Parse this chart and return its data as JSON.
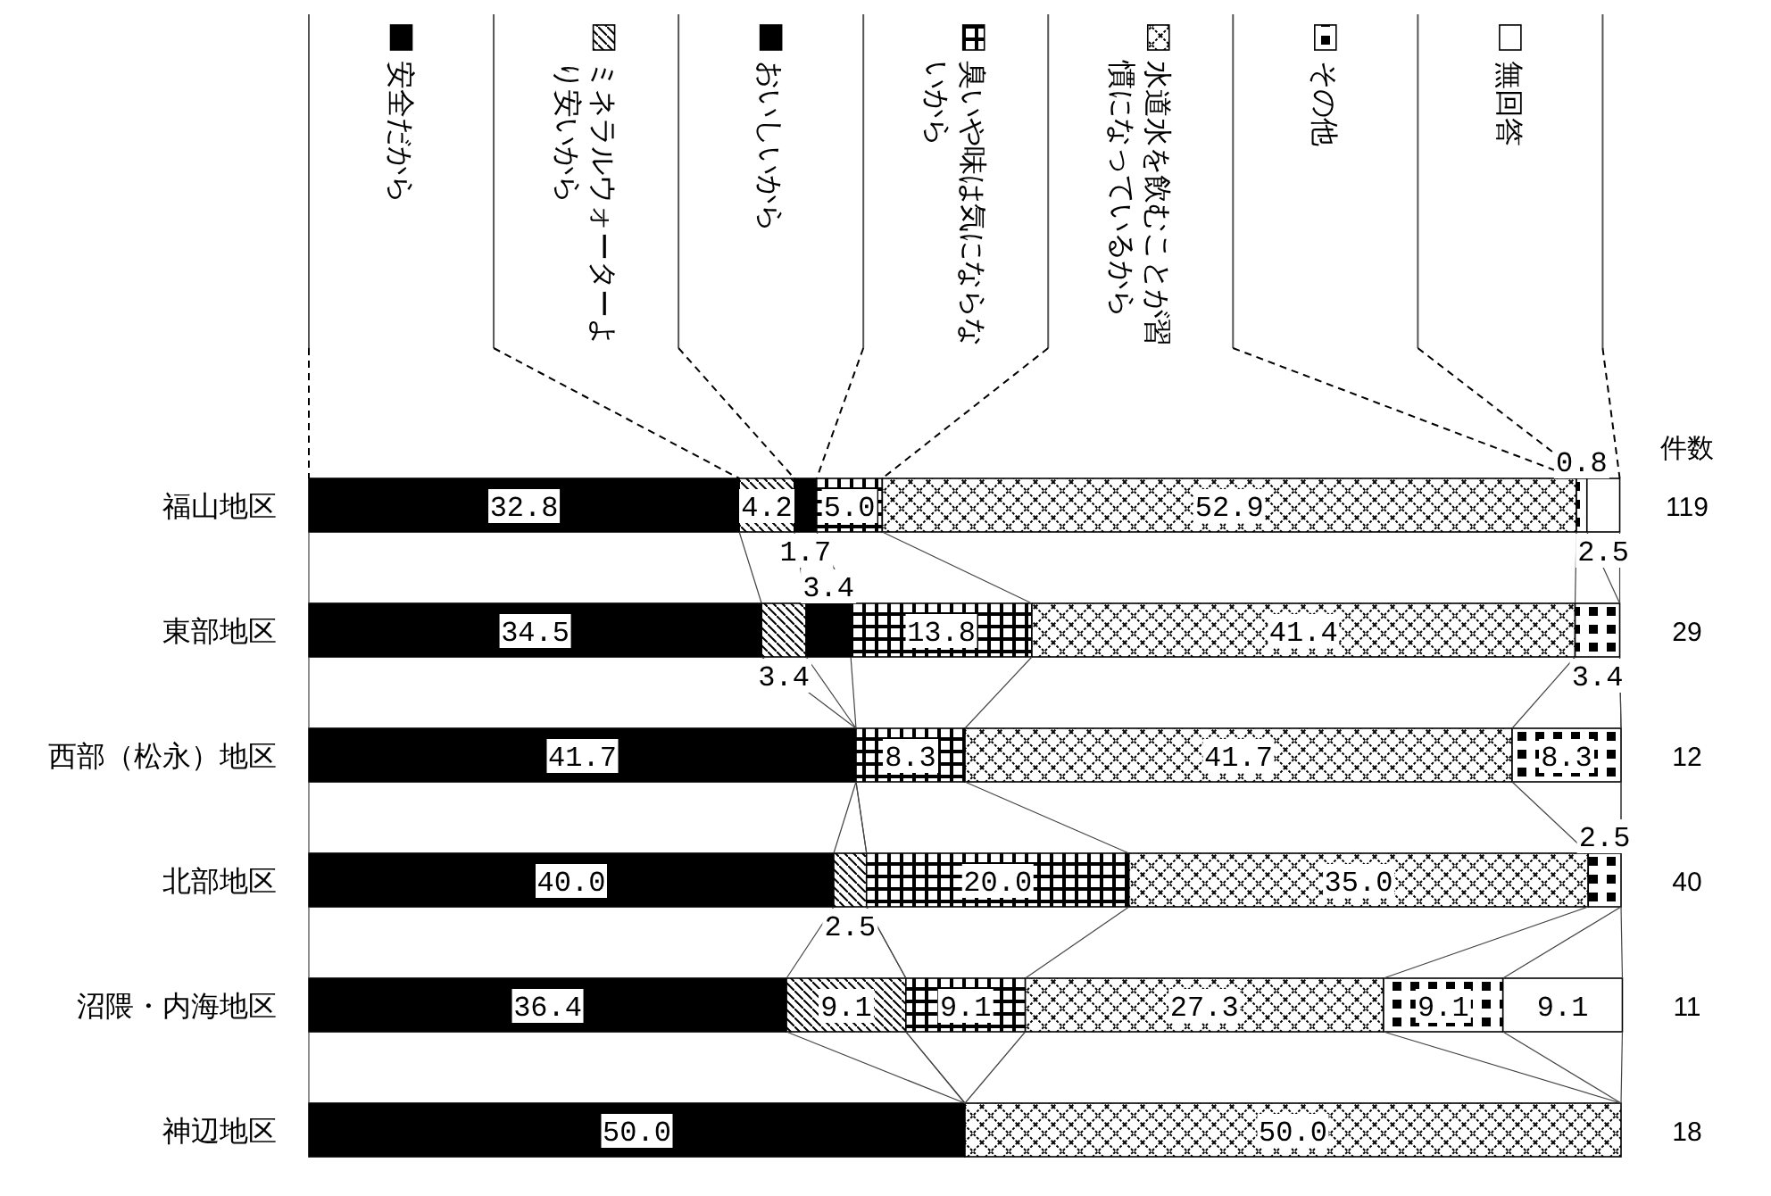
{
  "chart_data": {
    "type": "bar",
    "orientation": "horizontal",
    "stacked": true,
    "data_labels": true,
    "legend": "top",
    "xlim": [
      0,
      100
    ],
    "categories": [
      "福山地区",
      "東部地区",
      "西部（松永）地区",
      "北部地区",
      "沼隈・内海地区",
      "神辺地区"
    ],
    "y2label": "件数",
    "y2_categories": [
      "119",
      "29",
      "12",
      "40",
      "11",
      "18"
    ],
    "series": [
      {
        "name": "安全だから",
        "color": "#000000",
        "values": [
          32.8,
          34.5,
          41.7,
          40.0,
          36.4,
          50.0
        ],
        "value_labels": [
          "32.8",
          "34.5",
          "41.7",
          "40.0",
          "36.4",
          "50.0"
        ]
      },
      {
        "name": "ミネラルウォーターより安いから",
        "color": "#000000",
        "values": [
          4.2,
          3.4,
          null,
          2.5,
          9.1,
          null
        ],
        "value_labels": [
          "4.2",
          "3.4",
          null,
          "2.5",
          "9.1",
          null
        ]
      },
      {
        "name": "おいしいから",
        "color": "#000000",
        "values": [
          1.7,
          3.4,
          null,
          null,
          null,
          null
        ],
        "value_labels": [
          "1.7",
          "3.4",
          null,
          null,
          null,
          null
        ]
      },
      {
        "name": "臭いや味は気にならないから",
        "color": "#000000",
        "values": [
          5.0,
          13.8,
          8.3,
          20.0,
          9.1,
          null
        ],
        "value_labels": [
          "5.0",
          "13.8",
          "8.3",
          "20.0",
          "9.1",
          null
        ]
      },
      {
        "name": "水道水を飲むことが習慣になっているから",
        "color": "#000000",
        "values": [
          52.9,
          41.4,
          41.7,
          35.0,
          27.3,
          50.0
        ],
        "value_labels": [
          "52.9",
          "41.4",
          "41.7",
          "35.0",
          "27.3",
          "50.0"
        ]
      },
      {
        "name": "その他",
        "color": "#000000",
        "values": [
          0.8,
          3.4,
          8.3,
          2.5,
          9.1,
          null
        ],
        "value_labels": [
          "0.8",
          "3.4",
          "8.3",
          "2.5",
          "9.1",
          null
        ]
      },
      {
        "name": "無回答",
        "color": "#ffffff",
        "values": [
          2.5,
          null,
          null,
          null,
          9.1,
          null
        ],
        "value_labels": [
          "2.5",
          null,
          null,
          null,
          "9.1",
          null
        ]
      }
    ]
  }
}
